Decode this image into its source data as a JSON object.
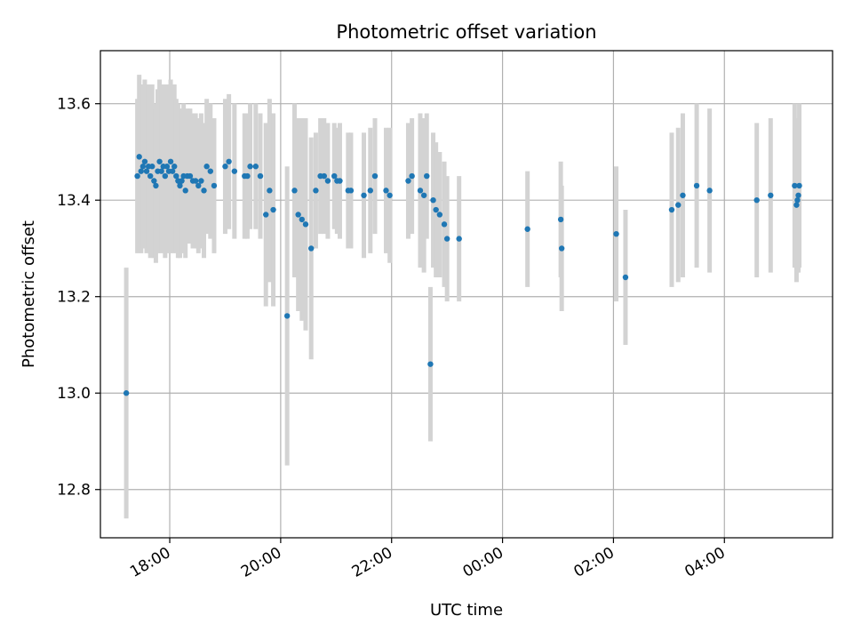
{
  "chart_data": {
    "type": "scatter",
    "title": "Photometric offset variation",
    "xlabel": "UTC time",
    "ylabel": "Photometric offset",
    "x_tick_labels": [
      "18:00",
      "20:00",
      "22:00",
      "00:00",
      "02:00",
      "04:00"
    ],
    "x_tick_hours": [
      18,
      20,
      22,
      24,
      26,
      28
    ],
    "xlim_hours": [
      16.75,
      29.95
    ],
    "y_ticks": [
      12.8,
      13.0,
      13.2,
      13.4,
      13.6
    ],
    "ylim": [
      12.7,
      13.71
    ],
    "grid": true,
    "point_color": "#1f77b4",
    "errorbar_color": "#d3d3d3",
    "series": [
      {
        "time": [
          "17:13",
          "17:25",
          "17:27",
          "17:29",
          "17:31",
          "17:33",
          "17:35",
          "17:37",
          "17:39",
          "17:41",
          "17:43",
          "17:45",
          "17:47",
          "17:49",
          "17:51",
          "17:53",
          "17:55",
          "17:57",
          "17:59",
          "18:01",
          "18:03",
          "18:05",
          "18:07",
          "18:09",
          "18:11",
          "18:13",
          "18:15",
          "18:17",
          "18:19",
          "18:22",
          "18:25",
          "18:28",
          "18:31",
          "18:34",
          "18:37",
          "18:40",
          "18:44",
          "18:48",
          "19:00",
          "19:04",
          "19:10",
          "19:21",
          "19:24",
          "19:27",
          "19:33",
          "19:38",
          "19:44",
          "19:48",
          "19:52",
          "20:07",
          "20:15",
          "20:19",
          "20:23",
          "20:27",
          "20:33",
          "20:38",
          "20:43",
          "20:47",
          "20:51",
          "20:58",
          "21:01",
          "21:04",
          "21:13",
          "21:16",
          "21:30",
          "21:37",
          "21:42",
          "21:54",
          "21:58",
          "22:18",
          "22:22",
          "22:31",
          "22:35",
          "22:38",
          "22:42",
          "22:45",
          "22:48",
          "22:52",
          "22:57",
          "23:00",
          "23:13",
          "00:27",
          "01:03",
          "01:04",
          "02:03",
          "02:13",
          "03:03",
          "03:10",
          "03:15",
          "03:30",
          "03:44",
          "04:35",
          "04:50",
          "05:16",
          "05:18",
          "05:19",
          "05:20",
          "05:21"
        ],
        "offset": [
          13.0,
          13.45,
          13.49,
          13.46,
          13.47,
          13.48,
          13.46,
          13.47,
          13.45,
          13.47,
          13.44,
          13.43,
          13.46,
          13.48,
          13.46,
          13.47,
          13.45,
          13.47,
          13.46,
          13.48,
          13.46,
          13.47,
          13.45,
          13.44,
          13.43,
          13.44,
          13.45,
          13.42,
          13.45,
          13.45,
          13.44,
          13.44,
          13.43,
          13.44,
          13.42,
          13.47,
          13.46,
          13.43,
          13.47,
          13.48,
          13.46,
          13.45,
          13.45,
          13.47,
          13.47,
          13.45,
          13.37,
          13.42,
          13.38,
          13.16,
          13.42,
          13.37,
          13.36,
          13.35,
          13.3,
          13.42,
          13.45,
          13.45,
          13.44,
          13.45,
          13.44,
          13.44,
          13.42,
          13.42,
          13.41,
          13.42,
          13.45,
          13.42,
          13.41,
          13.44,
          13.45,
          13.42,
          13.41,
          13.45,
          13.06,
          13.4,
          13.38,
          13.37,
          13.35,
          13.32,
          13.32,
          13.34,
          13.36,
          13.3,
          13.33,
          13.24,
          13.38,
          13.39,
          13.41,
          13.43,
          13.42,
          13.4,
          13.41,
          13.43,
          13.39,
          13.4,
          13.41,
          13.43
        ],
        "error": [
          0.26,
          0.16,
          0.17,
          0.17,
          0.17,
          0.17,
          0.17,
          0.17,
          0.17,
          0.17,
          0.16,
          0.16,
          0.17,
          0.17,
          0.17,
          0.17,
          0.17,
          0.17,
          0.17,
          0.17,
          0.17,
          0.17,
          0.16,
          0.16,
          0.15,
          0.15,
          0.15,
          0.14,
          0.14,
          0.14,
          0.14,
          0.14,
          0.14,
          0.14,
          0.14,
          0.14,
          0.14,
          0.14,
          0.14,
          0.14,
          0.14,
          0.13,
          0.13,
          0.13,
          0.13,
          0.13,
          0.19,
          0.19,
          0.2,
          0.31,
          0.18,
          0.2,
          0.21,
          0.22,
          0.23,
          0.12,
          0.12,
          0.12,
          0.12,
          0.11,
          0.11,
          0.12,
          0.12,
          0.12,
          0.13,
          0.13,
          0.12,
          0.13,
          0.14,
          0.12,
          0.12,
          0.16,
          0.16,
          0.13,
          0.16,
          0.14,
          0.14,
          0.13,
          0.13,
          0.13,
          0.13,
          0.12,
          0.12,
          0.13,
          0.14,
          0.14,
          0.16,
          0.16,
          0.17,
          0.17,
          0.17,
          0.16,
          0.16,
          0.17,
          0.16,
          0.15,
          0.16,
          0.17
        ]
      }
    ]
  }
}
